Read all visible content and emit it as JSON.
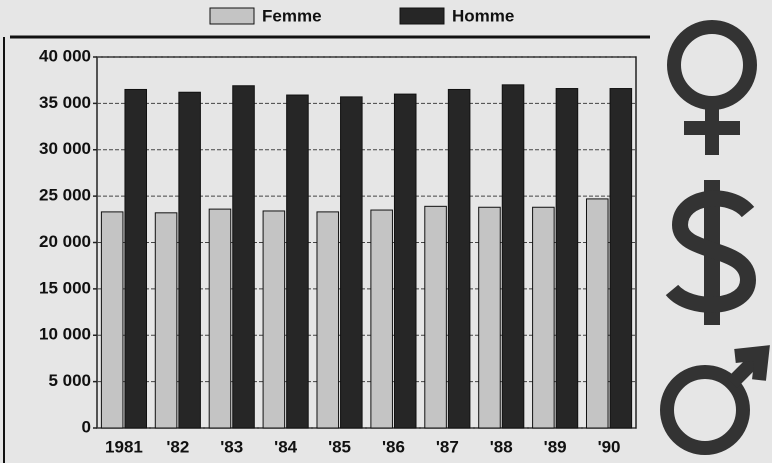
{
  "chart_data": {
    "type": "bar",
    "categories": [
      "1981",
      "'82",
      "'83",
      "'84",
      "'85",
      "'86",
      "'87",
      "'88",
      "'89",
      "'90"
    ],
    "series": [
      {
        "name": "Femme",
        "color": "#c4c4c4",
        "values": [
          23300,
          23200,
          23600,
          23400,
          23300,
          23500,
          23900,
          23800,
          23800,
          24700
        ]
      },
      {
        "name": "Homme",
        "color": "#262626",
        "values": [
          36500,
          36200,
          36900,
          35900,
          35700,
          36000,
          36500,
          37000,
          36600,
          36600
        ]
      }
    ],
    "ylim": [
      0,
      40000
    ],
    "yticks": [
      {
        "value": 0,
        "label": "0"
      },
      {
        "value": 5000,
        "label": "5 000"
      },
      {
        "value": 10000,
        "label": "10 000"
      },
      {
        "value": 15000,
        "label": "15 000"
      },
      {
        "value": 20000,
        "label": "20 000"
      },
      {
        "value": 25000,
        "label": "25 000"
      },
      {
        "value": 30000,
        "label": "30 000"
      },
      {
        "value": 35000,
        "label": "35 000"
      },
      {
        "value": 40000,
        "label": "40 000"
      }
    ],
    "grid": true
  }
}
